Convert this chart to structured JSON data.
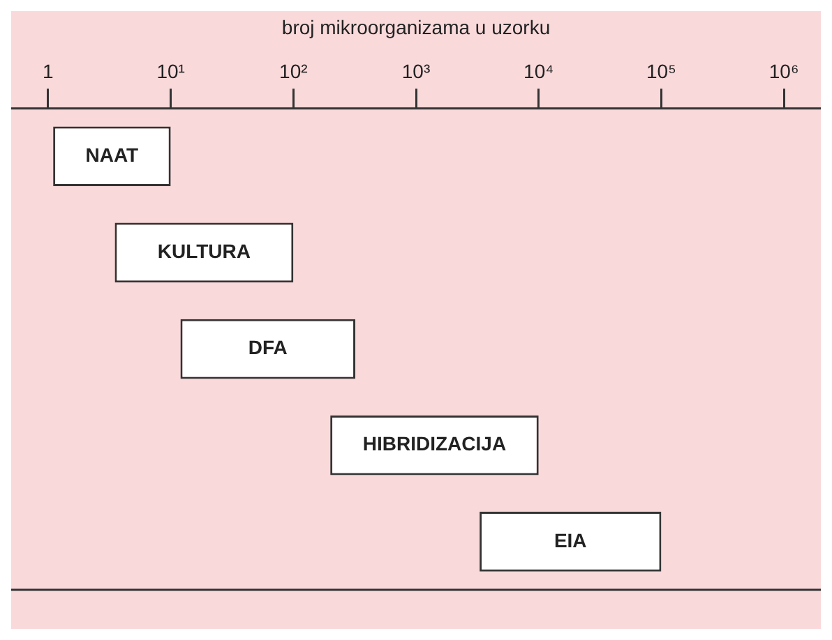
{
  "chart_data": {
    "type": "bar",
    "orientation": "horizontal",
    "xlabel": "broj mikroorganizama u uzorku",
    "categories": [
      "NAAT",
      "KULTURA",
      "DFA",
      "HIBRIDIZACIJA",
      "EIA"
    ],
    "base": [
      1.1,
      3.5,
      12,
      200,
      3300
    ],
    "values": [
      8.9,
      96.5,
      308,
      9800,
      96700
    ],
    "color": "#ffffff",
    "log": "x",
    "xlim": [
      0.5,
      2000000
    ],
    "xticks": [
      1,
      {
        "value": 10,
        "label": "10¹"
      },
      {
        "value": 100,
        "label": "10²"
      },
      {
        "value": 1000,
        "label": "10³"
      },
      {
        "value": 10000,
        "label": "10⁴"
      },
      {
        "value": 100000,
        "label": "10⁵"
      },
      {
        "value": 1000000,
        "label": "10⁶"
      }
    ],
    "tick_labels": "x",
    "legend": false,
    "grid": false
  }
}
